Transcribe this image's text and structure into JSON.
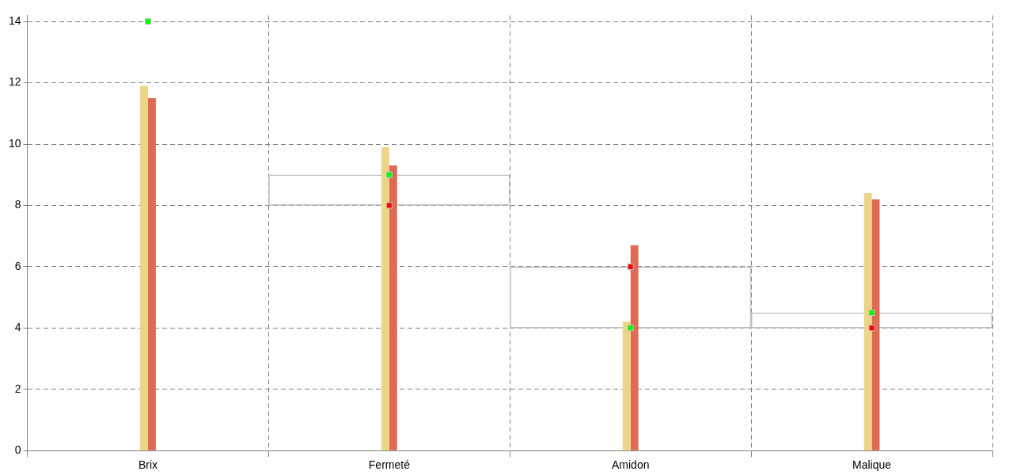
{
  "chart_data": {
    "type": "bar",
    "categories": [
      "Brix",
      "Fermeté",
      "Amidon",
      "Malique"
    ],
    "series": [
      {
        "color": "#c0c0c0",
        "base": [
          null,
          8,
          4,
          4
        ],
        "values": [
          null,
          1,
          2,
          0.5
        ]
      },
      {
        "color": "#edd486",
        "values": [
          11.9,
          9.9,
          4.2,
          8.4
        ]
      },
      {
        "color": "#de6b55",
        "values": [
          11.5,
          9.3,
          6.7,
          8.2
        ]
      },
      {
        "type": "scatter",
        "color": "#00ff00",
        "marker": "square",
        "x": [
          "Brix",
          "Fermeté",
          "Amidon",
          "Malique"
        ],
        "values": [
          14,
          9,
          4,
          4.5
        ]
      },
      {
        "type": "scatter",
        "color": "#ff0000",
        "marker": "square",
        "x": [
          "Brix",
          "Fermeté",
          "Amidon",
          "Malique"
        ],
        "values": [
          null,
          8,
          6,
          4
        ]
      }
    ],
    "ylim": [
      0,
      14.2
    ],
    "yticks": [
      0,
      2,
      4,
      6,
      8,
      10,
      12,
      14
    ],
    "grid": true,
    "legend": false
  }
}
